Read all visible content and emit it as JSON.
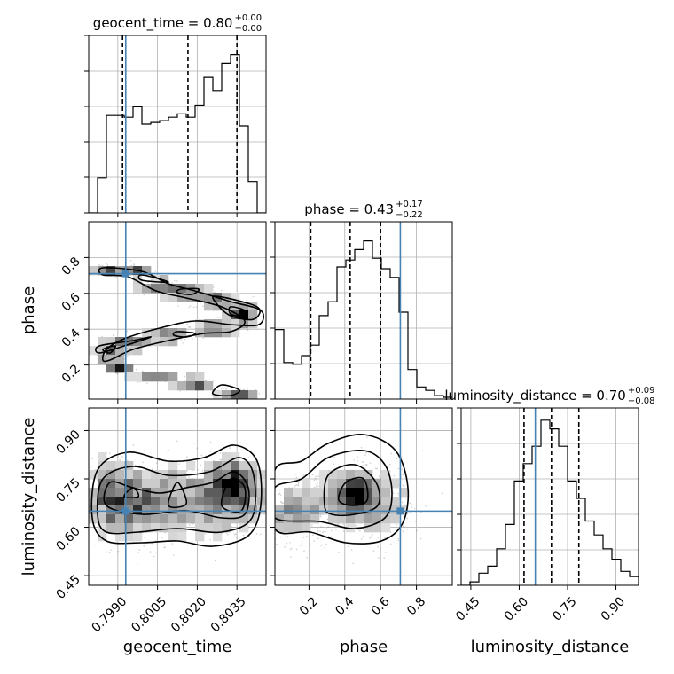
{
  "chart_data": {
    "type": "corner",
    "parameters": [
      "geocent_time",
      "phase",
      "luminosity_distance"
    ],
    "injection": {
      "geocent_time": 0.7993,
      "phase": 0.71,
      "luminosity_distance": 0.65
    },
    "titles": [
      {
        "label": "geocent_time",
        "median": "0.80",
        "plus": "+0.00",
        "minus": "−0.00"
      },
      {
        "label": "phase",
        "median": "0.43",
        "plus": "+0.17",
        "minus": "−0.22"
      },
      {
        "label": "luminosity_distance",
        "median": "0.70",
        "plus": "+0.09",
        "minus": "−0.08"
      }
    ],
    "ranges": {
      "geocent_time": [
        0.7979,
        0.8046
      ],
      "phase": [
        0.01,
        1.0
      ],
      "luminosity_distance": [
        0.42,
        0.97
      ]
    },
    "ticks": {
      "geocent_time": [
        {
          "value": 0.799,
          "label": "0.7990"
        },
        {
          "value": 0.8005,
          "label": "0.8005"
        },
        {
          "value": 0.802,
          "label": "0.8020"
        },
        {
          "value": 0.8035,
          "label": "0.8035"
        }
      ],
      "phase": [
        {
          "value": 0.2,
          "label": "0.2"
        },
        {
          "value": 0.4,
          "label": "0.4"
        },
        {
          "value": 0.6,
          "label": "0.6"
        },
        {
          "value": 0.8,
          "label": "0.8"
        }
      ],
      "luminosity_distance": [
        {
          "value": 0.45,
          "label": "0.45"
        },
        {
          "value": 0.6,
          "label": "0.60"
        },
        {
          "value": 0.75,
          "label": "0.75"
        },
        {
          "value": 0.9,
          "label": "0.90"
        }
      ]
    },
    "quantiles": {
      "geocent_time": [
        0.79918,
        0.80165,
        0.8035
      ],
      "phase": [
        0.21,
        0.43,
        0.6
      ],
      "luminosity_distance": [
        0.615,
        0.7,
        0.785
      ]
    },
    "hist": {
      "geocent_time": {
        "y": [
          0,
          0.2,
          0.56,
          0.56,
          0.55,
          0.61,
          0.51,
          0.52,
          0.53,
          0.55,
          0.57,
          0.55,
          0.62,
          0.78,
          0.7,
          0.86,
          0.91,
          0.5,
          0.18,
          0
        ]
      },
      "phase": {
        "y": [
          0.4,
          0.21,
          0.2,
          0.25,
          0.31,
          0.48,
          0.56,
          0.76,
          0.8,
          0.86,
          0.91,
          0.81,
          0.75,
          0.7,
          0.5,
          0.17,
          0.07,
          0.05,
          0.02,
          0.01
        ]
      },
      "luminosity_distance": {
        "y": [
          0.0,
          0.02,
          0.07,
          0.11,
          0.21,
          0.35,
          0.6,
          0.7,
          0.8,
          0.95,
          0.9,
          0.8,
          0.6,
          0.5,
          0.37,
          0.29,
          0.21,
          0.15,
          0.08,
          0.05
        ]
      }
    },
    "density": {
      "phase_vs_geocent_time": "S-shaped band: phase ≈0.72 near 0.7992, descending to ≈0.50 near 0.8035, a second branch near 0.30 at 0.7984, and a tail to 0.02 at 0.8040",
      "lumdist_vs_geocent_time": "broad band centered at ≈0.68 across full geocent_time range with peak near 0.8038",
      "lumdist_vs_phase": "single peak near phase 0.45, luminosity_distance 0.69"
    },
    "grid": true
  }
}
